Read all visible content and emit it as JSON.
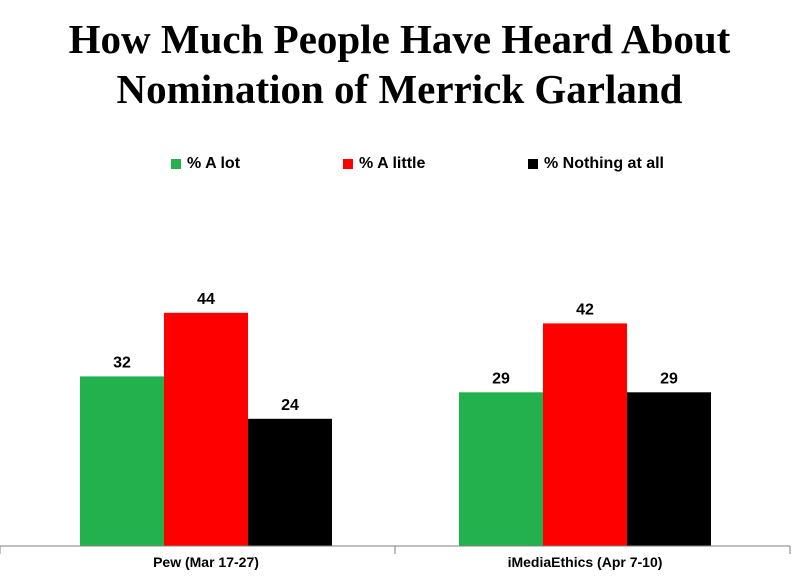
{
  "chart_data": {
    "type": "bar",
    "title_line1": "How Much People Have Heard About",
    "title_line2": "Nomination of Merrick Garland",
    "categories": [
      "Pew (Mar 17-27)",
      "iMediaEthics (Apr 7-10)"
    ],
    "series": [
      {
        "name": "% A lot",
        "color": "#22b14c",
        "values": [
          32,
          29
        ]
      },
      {
        "name": "% A little",
        "color": "#ff0000",
        "values": [
          44,
          42
        ]
      },
      {
        "name": "% Nothing at all",
        "color": "#000000",
        "values": [
          24,
          29
        ]
      }
    ],
    "ylim": [
      0,
      100
    ],
    "grid": false,
    "legend_position": "top"
  }
}
